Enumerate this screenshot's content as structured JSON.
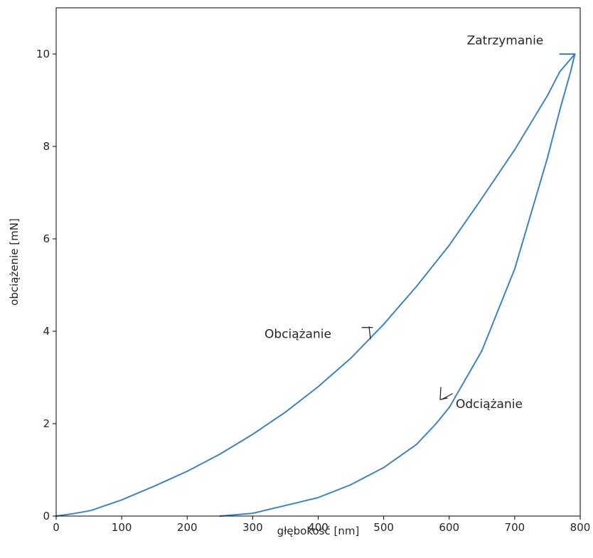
{
  "chart_data": {
    "type": "line",
    "xlabel": "głębokość [nm]",
    "ylabel": "obciążenie [mN]",
    "xlim": [
      0,
      800
    ],
    "ylim": [
      0,
      11
    ],
    "xticks": [
      0,
      100,
      200,
      300,
      400,
      500,
      600,
      700,
      800
    ],
    "yticks": [
      0,
      2,
      4,
      6,
      8,
      10
    ],
    "grid": false,
    "series": [
      {
        "color": "#3b84c0",
        "x": [
          0,
          25,
          53,
          100,
          150,
          200,
          250,
          300,
          350,
          400,
          450,
          500,
          550,
          600,
          650,
          700,
          750,
          769,
          792,
          785,
          770,
          750,
          700,
          650,
          600,
          580,
          550,
          500,
          450,
          400,
          365,
          300,
          250
        ],
        "y": [
          0,
          0.05,
          0.12,
          0.35,
          0.65,
          0.97,
          1.34,
          1.77,
          2.25,
          2.8,
          3.42,
          4.15,
          4.97,
          5.86,
          6.88,
          7.93,
          9.1,
          9.62,
          10.0,
          9.6,
          8.85,
          7.75,
          5.35,
          3.58,
          2.35,
          2.0,
          1.55,
          1.05,
          0.68,
          0.4,
          0.28,
          0.06,
          0.0
        ]
      },
      {
        "color": "#3b84c0",
        "x": [
          769,
          792
        ],
        "y": [
          10.0,
          10.0
        ]
      }
    ],
    "annotations": [
      {
        "text": "Zatrzymanie",
        "x": 627,
        "y": 10.3
      },
      {
        "text": "Obciążanie",
        "x": 318,
        "y": 3.95
      },
      {
        "text": "Odciążanie",
        "x": 610,
        "y": 2.43
      }
    ],
    "arrows": [
      {
        "name": "loading-direction-arrow",
        "x": 482,
        "y": 4.05,
        "direction": "up-right"
      },
      {
        "name": "unloading-direction-arrow",
        "x": 584,
        "y": 2.6,
        "direction": "down-left"
      }
    ]
  }
}
